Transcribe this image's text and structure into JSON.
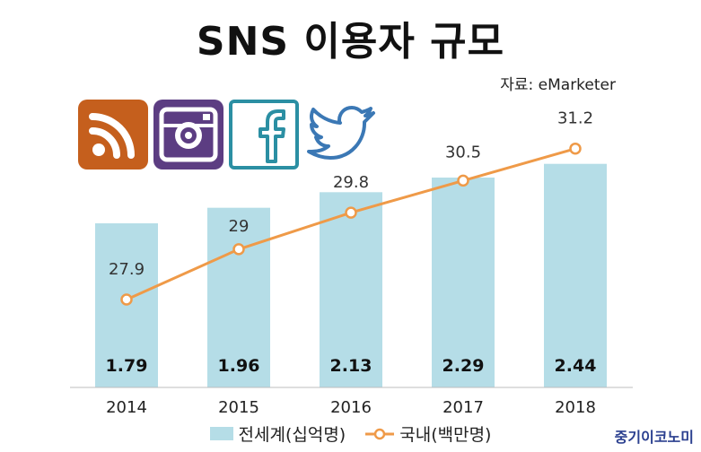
{
  "title": "SNS 이용자 규모",
  "source": "자료: eMarketer",
  "brand": "중기이코노미",
  "icons": [
    "rss-icon",
    "instagram-icon",
    "facebook-icon",
    "twitter-icon"
  ],
  "colors": {
    "bar": "#b5dde7",
    "line": "#ef9a48",
    "rss_bg": "#c55f1d",
    "instagram_bg": "#5c3d82",
    "facebook_border": "#2b8fa3",
    "twitter": "#3b78b5"
  },
  "chart_data": {
    "type": "bar+line",
    "categories": [
      "2014",
      "2015",
      "2016",
      "2017",
      "2018"
    ],
    "series": [
      {
        "name": "전세계(십억명)",
        "type": "bar",
        "values": [
          1.79,
          1.96,
          2.13,
          2.29,
          2.44
        ],
        "labels": [
          "1.79",
          "1.96",
          "2.13",
          "2.29",
          "2.44"
        ]
      },
      {
        "name": "국내(백만명)",
        "type": "line",
        "values": [
          27.9,
          29,
          29.8,
          30.5,
          31.2
        ],
        "labels": [
          "27.9",
          "29",
          "29.8",
          "30.5",
          "31.2"
        ]
      }
    ],
    "legend_position": "bottom",
    "grid": false
  }
}
